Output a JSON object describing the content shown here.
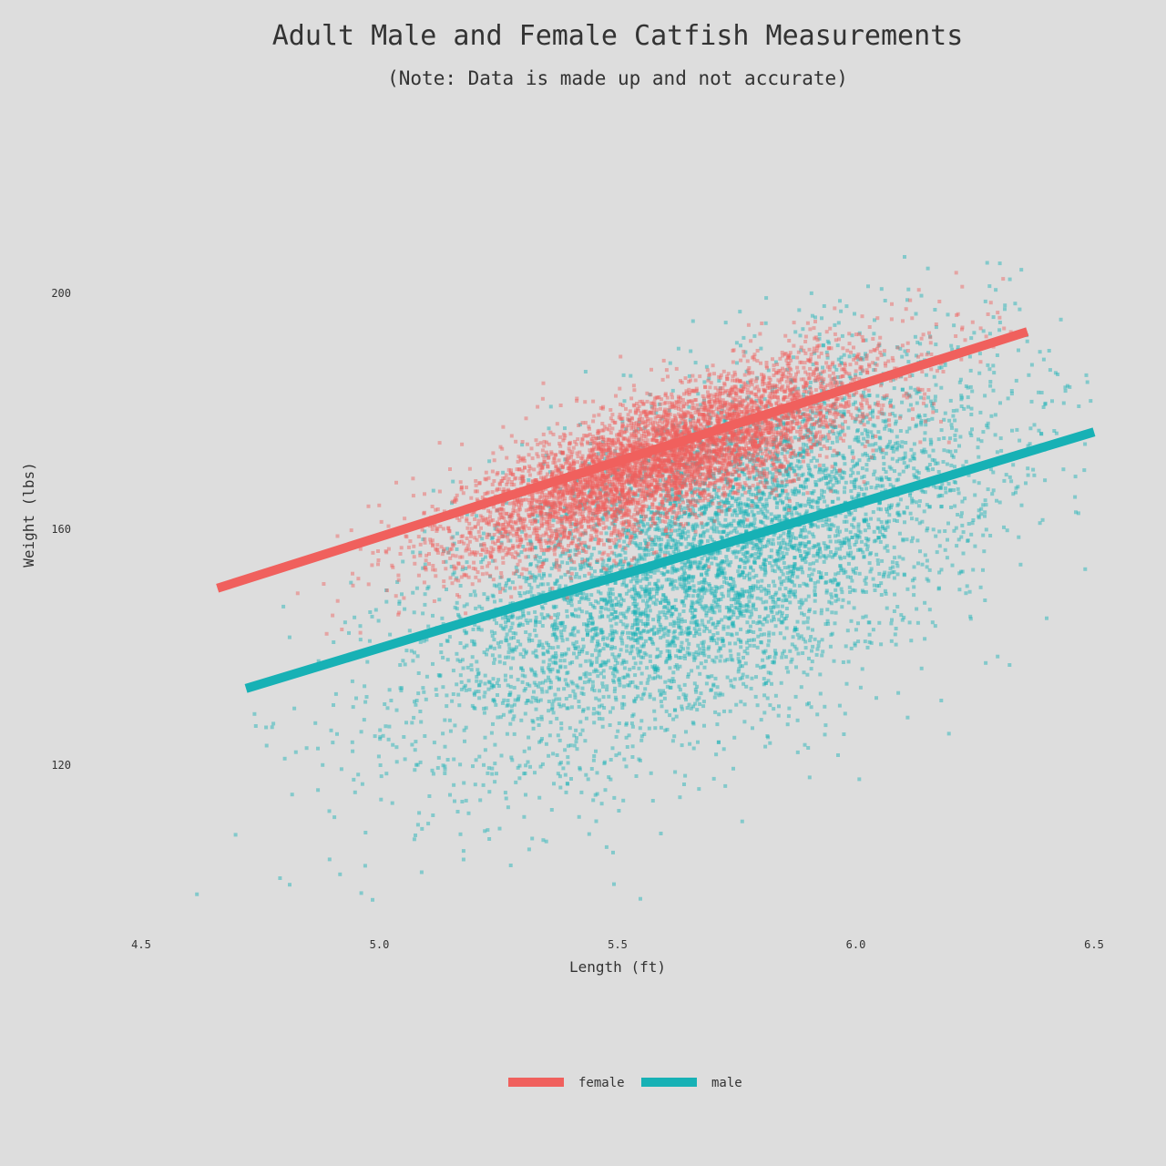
{
  "chart_data": {
    "type": "scatter",
    "title": "Adult Male and Female Catfish Measurements",
    "subtitle": "(Note: Data is made up and not accurate)",
    "xlabel": "Length (ft)",
    "ylabel": "Weight (lbs)",
    "xlim": [
      4.5,
      6.5
    ],
    "ylim": [
      90,
      220
    ],
    "x_ticks": [
      4.5,
      5.0,
      5.5,
      6.0,
      6.5
    ],
    "x_tick_labels": [
      "4.5",
      "5.0",
      "5.5",
      "6.0",
      "6.5"
    ],
    "y_ticks": [
      120,
      160,
      200
    ],
    "y_tick_labels": [
      "120",
      "160",
      "200"
    ],
    "grid": false,
    "legend_position": "bottom-center",
    "series": [
      {
        "name": "female",
        "color": "#f0605d",
        "points_distribution": {
          "center": [
            5.6,
            172
          ],
          "x_sd": 0.22,
          "y_sd": 8.5,
          "correlation": 0.78,
          "n": 5500
        },
        "trend_line": {
          "x": [
            4.66,
            6.36
          ],
          "y": [
            150.0,
            193.5
          ]
        }
      },
      {
        "name": "male",
        "color": "#17b1b5",
        "points_distribution": {
          "center": [
            5.7,
            155
          ],
          "x_sd": 0.3,
          "y_sd": 17,
          "correlation": 0.6,
          "n": 5500
        },
        "trend_line": {
          "x": [
            4.72,
            6.5
          ],
          "y": [
            133.0,
            176.5
          ]
        }
      }
    ]
  }
}
